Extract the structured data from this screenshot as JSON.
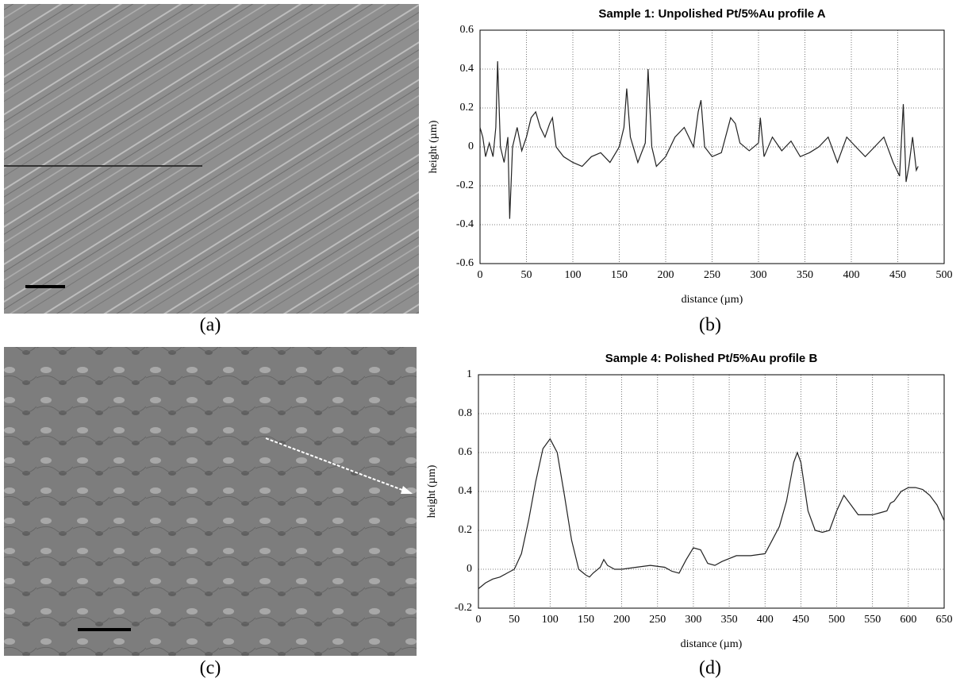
{
  "panel_labels": [
    "(a)",
    "(b)",
    "(c)",
    "(d)"
  ],
  "chart_data": [
    {
      "type": "line",
      "title": "Sample 1: Unpolished Pt/5%Au profile A",
      "x_label": "distance (µm)",
      "y_label": "height (µm)",
      "x": [
        0,
        3,
        6,
        10,
        14,
        17,
        19,
        22,
        26,
        30,
        32,
        35,
        40,
        45,
        50,
        55,
        60,
        65,
        70,
        75,
        78,
        82,
        90,
        100,
        110,
        120,
        130,
        140,
        150,
        155,
        158,
        162,
        170,
        178,
        181,
        185,
        190,
        200,
        210,
        220,
        230,
        235,
        238,
        242,
        250,
        260,
        270,
        275,
        280,
        290,
        300,
        302,
        306,
        315,
        325,
        335,
        345,
        355,
        365,
        375,
        385,
        395,
        405,
        415,
        425,
        435,
        445,
        452,
        456,
        459,
        462,
        466,
        470,
        472
      ],
      "series": [
        {
          "color": "#222222",
          "values": [
            0.1,
            0.05,
            -0.05,
            0.02,
            -0.05,
            0.1,
            0.44,
            0.0,
            -0.08,
            0.05,
            -0.37,
            0.0,
            0.1,
            -0.02,
            0.05,
            0.15,
            0.18,
            0.1,
            0.05,
            0.12,
            0.15,
            0.0,
            -0.05,
            -0.08,
            -0.1,
            -0.05,
            -0.03,
            -0.08,
            0.0,
            0.1,
            0.3,
            0.05,
            -0.08,
            0.02,
            0.4,
            0.0,
            -0.1,
            -0.05,
            0.05,
            0.1,
            0.0,
            0.18,
            0.24,
            0.0,
            -0.05,
            -0.03,
            0.15,
            0.12,
            0.02,
            -0.02,
            0.02,
            0.15,
            -0.05,
            0.05,
            -0.02,
            0.03,
            -0.05,
            -0.03,
            0.0,
            0.05,
            -0.08,
            0.05,
            0.0,
            -0.05,
            0.0,
            0.05,
            -0.08,
            -0.15,
            0.22,
            -0.18,
            -0.1,
            0.05,
            -0.12,
            -0.1
          ]
        }
      ],
      "xlim": [
        0,
        500
      ],
      "xticks": [
        0,
        50,
        100,
        150,
        200,
        250,
        300,
        350,
        400,
        450,
        500
      ],
      "ylim": [
        -0.6,
        0.6
      ],
      "yticks": [
        -0.6,
        -0.4,
        -0.2,
        0,
        0.2,
        0.4,
        0.6
      ],
      "grid": true
    },
    {
      "type": "line",
      "title": "Sample 4: Polished Pt/5%Au profile B",
      "x_label": "distance (µm)",
      "y_label": "height (µm)",
      "x": [
        0,
        10,
        20,
        30,
        40,
        50,
        60,
        70,
        80,
        90,
        100,
        110,
        120,
        130,
        140,
        150,
        155,
        160,
        170,
        175,
        180,
        190,
        200,
        220,
        240,
        260,
        270,
        280,
        290,
        300,
        310,
        320,
        330,
        340,
        360,
        380,
        400,
        410,
        420,
        430,
        440,
        445,
        450,
        460,
        470,
        480,
        490,
        500,
        510,
        520,
        530,
        540,
        550,
        560,
        570,
        575,
        580,
        590,
        600,
        610,
        620,
        630,
        640,
        650
      ],
      "series": [
        {
          "color": "#222222",
          "values": [
            -0.1,
            -0.07,
            -0.05,
            -0.04,
            -0.02,
            0.0,
            0.08,
            0.25,
            0.45,
            0.62,
            0.67,
            0.6,
            0.38,
            0.15,
            0.0,
            -0.03,
            -0.04,
            -0.02,
            0.01,
            0.05,
            0.02,
            0.0,
            0.0,
            0.01,
            0.02,
            0.01,
            -0.01,
            -0.02,
            0.05,
            0.11,
            0.1,
            0.03,
            0.02,
            0.04,
            0.07,
            0.07,
            0.08,
            0.15,
            0.22,
            0.35,
            0.55,
            0.6,
            0.55,
            0.3,
            0.2,
            0.19,
            0.2,
            0.3,
            0.38,
            0.33,
            0.28,
            0.28,
            0.28,
            0.29,
            0.3,
            0.34,
            0.35,
            0.4,
            0.42,
            0.42,
            0.41,
            0.38,
            0.33,
            0.25
          ]
        }
      ],
      "xlim": [
        0,
        650
      ],
      "xticks": [
        0,
        50,
        100,
        150,
        200,
        250,
        300,
        350,
        400,
        450,
        500,
        550,
        600,
        650
      ],
      "ylim": [
        -0.2,
        1
      ],
      "yticks": [
        -0.2,
        0,
        0.2,
        0.4,
        0.6,
        0.8,
        1
      ],
      "grid": true
    }
  ]
}
